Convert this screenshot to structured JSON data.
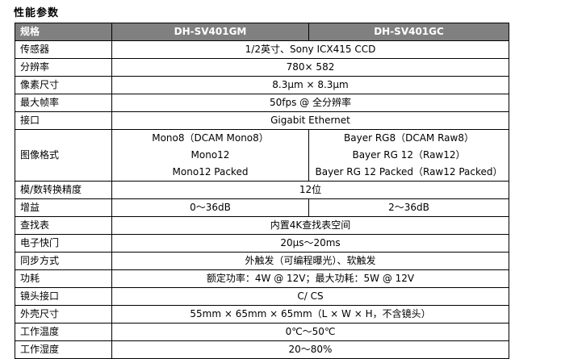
{
  "title": "性能参数",
  "table": {
    "headers": {
      "col_spec": "规格",
      "col_gm": "DH-SV401GM",
      "col_gc": "DH-SV401GC"
    },
    "header_bg": "#808080",
    "header_text_color": "#ffffff",
    "rows": [
      {
        "label": "传感器",
        "span": true,
        "value": "1/2英寸、Sony ICX415 CCD"
      },
      {
        "label": "分辨率",
        "span": true,
        "value": "780× 582"
      },
      {
        "label": "像素尺寸",
        "span": true,
        "value": "8.3μm × 8.3μm"
      },
      {
        "label": "最大帧率",
        "span": true,
        "value": "50fps @ 全分辨率"
      },
      {
        "label": "接口",
        "span": true,
        "value": "Gigabit Ethernet"
      },
      {
        "label": "图像格式",
        "span": false,
        "gm_lines": [
          "Mono8（DCAM Mono8）",
          "Mono12",
          "Mono12 Packed"
        ],
        "gc_lines": [
          "Bayer RG8（DCAM Raw8）",
          "Bayer RG 12（Raw12）",
          "Bayer RG 12 Packed（Raw12 Packed）"
        ]
      },
      {
        "label": "模/数转换精度",
        "span": true,
        "value": "12位"
      },
      {
        "label": "增益",
        "span": false,
        "gm": "0～36dB",
        "gc": "2～36dB"
      },
      {
        "label": "查找表",
        "span": true,
        "value": "内置4K查找表空间"
      },
      {
        "label": "电子快门",
        "span": true,
        "value": "20μs～20ms"
      },
      {
        "label": "同步方式",
        "span": true,
        "value": "外触发（可编程曝光）、软触发"
      },
      {
        "label": "功耗",
        "span": true,
        "value": "额定功率：4W @ 12V；最大功耗：5W @ 12V"
      },
      {
        "label": "镜头接口",
        "span": true,
        "value": "C/ CS"
      },
      {
        "label": "外壳尺寸",
        "span": true,
        "value": "55mm × 65mm × 65mm（L × W × H，不含镜头）"
      },
      {
        "label": "工作温度",
        "span": true,
        "value": "0℃～50℃"
      },
      {
        "label": "工作湿度",
        "span": true,
        "value": "20～80%"
      }
    ]
  }
}
